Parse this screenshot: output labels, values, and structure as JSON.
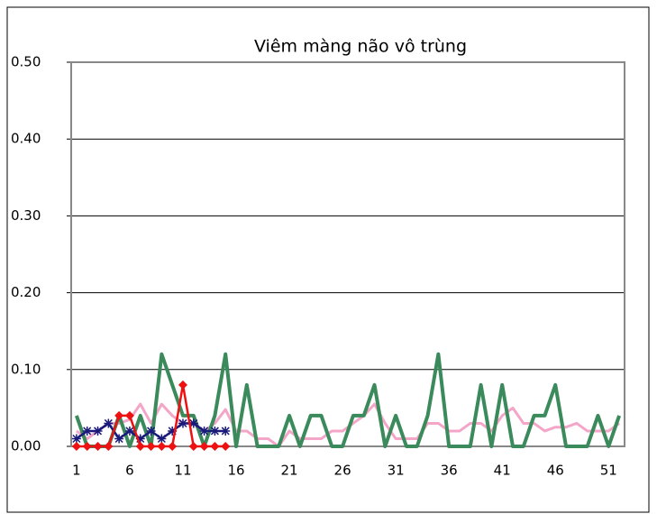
{
  "chart_data": {
    "type": "line",
    "title": "Viêm màng não vô trùng",
    "categories": [
      1,
      null,
      null,
      null,
      null,
      6,
      null,
      null,
      null,
      null,
      11,
      null,
      null,
      null,
      null,
      16,
      null,
      null,
      null,
      null,
      21,
      null,
      null,
      null,
      null,
      26,
      null,
      null,
      null,
      null,
      31,
      null,
      null,
      null,
      null,
      36,
      null,
      null,
      null,
      null,
      41,
      null,
      null,
      null,
      null,
      46,
      null,
      null,
      null,
      null,
      51,
      null
    ],
    "ylim": [
      0,
      0.5
    ],
    "yticks": [
      {
        "value": 0,
        "label": "0.00"
      },
      {
        "value": 0.1,
        "label": "0.10"
      },
      {
        "value": 0.2,
        "label": "0.20"
      },
      {
        "value": 0.3,
        "label": "0.30"
      },
      {
        "value": 0.4,
        "label": "0.40"
      },
      {
        "value": 0.5,
        "label": "0.50"
      }
    ],
    "grid": true,
    "series": [
      {
        "color": "#f4a6c8",
        "marker": "none",
        "values": [
          0.02,
          0.01,
          0.02,
          0.03,
          0.03,
          0.035,
          0.055,
          0.03,
          0.055,
          0.04,
          0.03,
          0.03,
          0.02,
          0.03,
          0.048,
          0.02,
          0.02,
          0.01,
          0.01,
          0,
          0.02,
          0.01,
          0.01,
          0.01,
          0.02,
          0.02,
          0.03,
          0.04,
          0.055,
          0.03,
          0.01,
          0.01,
          0.01,
          0.03,
          0.03,
          0.02,
          0.02,
          0.03,
          0.03,
          0.02,
          0.04,
          0.05,
          0.03,
          0.03,
          0.02,
          0.025,
          0.025,
          0.03,
          0.02,
          0.02,
          0.02,
          0.03
        ]
      },
      {
        "color": "#3a8a5c",
        "marker": "none",
        "values": [
          0.04,
          0,
          0,
          0,
          0.04,
          0,
          0.04,
          0,
          0.12,
          0.08,
          0.04,
          0.04,
          0,
          0.04,
          0.12,
          0,
          0.08,
          0,
          0,
          0,
          0.04,
          0,
          0.04,
          0.04,
          0,
          0,
          0.04,
          0.04,
          0.08,
          0,
          0.04,
          0,
          0,
          0.04,
          0.12,
          0,
          0,
          0,
          0.08,
          0,
          0.08,
          0,
          0,
          0.04,
          0.04,
          0.08,
          0,
          0,
          0,
          0.04,
          0,
          0.04
        ]
      },
      {
        "color": "#1a1a7a",
        "marker": "asterisk",
        "values": [
          0.01,
          0.02,
          0.02,
          0.03,
          0.01,
          0.02,
          0.01,
          0.02,
          0.01,
          0.02,
          0.03,
          0.03,
          0.02,
          0.02,
          0.02,
          null,
          null,
          null,
          null,
          null,
          null,
          null,
          null,
          null,
          null,
          null,
          null,
          null,
          null,
          null,
          null,
          null,
          null,
          null,
          null,
          null,
          null,
          null,
          null,
          null,
          null,
          null,
          null,
          null,
          null,
          null,
          null,
          null,
          null,
          null,
          null,
          null
        ]
      },
      {
        "color": "#ee1111",
        "marker": "diamond",
        "values": [
          0,
          0,
          0,
          0,
          0.04,
          0.04,
          0,
          0,
          0,
          0,
          0.08,
          0,
          0,
          0,
          0,
          null,
          null,
          null,
          null,
          null,
          null,
          null,
          null,
          null,
          null,
          null,
          null,
          null,
          null,
          null,
          null,
          null,
          null,
          null,
          null,
          null,
          null,
          null,
          null,
          null,
          null,
          null,
          null,
          null,
          null,
          null,
          null,
          null,
          null,
          null,
          null,
          null
        ]
      }
    ]
  }
}
